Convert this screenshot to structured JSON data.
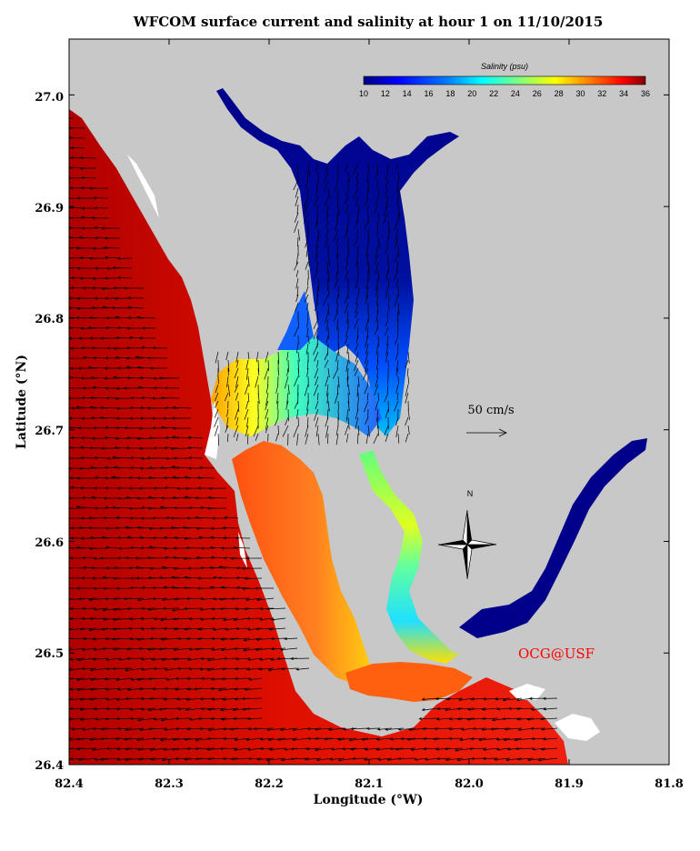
{
  "title": "WFCOM surface current and salinity at hour 1 on 11/10/2015",
  "xlabel": "Longitude (°W)",
  "ylabel": "Latitude (°N)",
  "credit": "OCG@USF",
  "credit_color": "#ff0000",
  "scale_arrow_label": "50 cm/s",
  "compass_label": "N",
  "colorbar": {
    "title": "Salinity (psu)",
    "ticks": [
      "10",
      "12",
      "14",
      "16",
      "18",
      "20",
      "22",
      "24",
      "26",
      "28",
      "30",
      "32",
      "34",
      "36"
    ],
    "colors": [
      "#00007f",
      "#0000ff",
      "#007fff",
      "#00ffff",
      "#7fff7f",
      "#ffff00",
      "#ff7f00",
      "#ff0000",
      "#7f0000"
    ]
  },
  "land_color": "#c8c8c8",
  "chart_data": {
    "type": "map",
    "variable": "surface current and salinity",
    "xlim": [
      82.4,
      81.8
    ],
    "ylim": [
      26.4,
      27.05
    ],
    "x_ticks": [
      "82.4",
      "82.3",
      "82.2",
      "82.1",
      "82.0",
      "81.9",
      "81.8"
    ],
    "y_ticks": [
      "26.4",
      "26.5",
      "26.6",
      "26.7",
      "26.8",
      "26.9",
      "27.0"
    ],
    "salinity_range": [
      10,
      36
    ],
    "scale_arrow_speed_cm_s": 50
  }
}
